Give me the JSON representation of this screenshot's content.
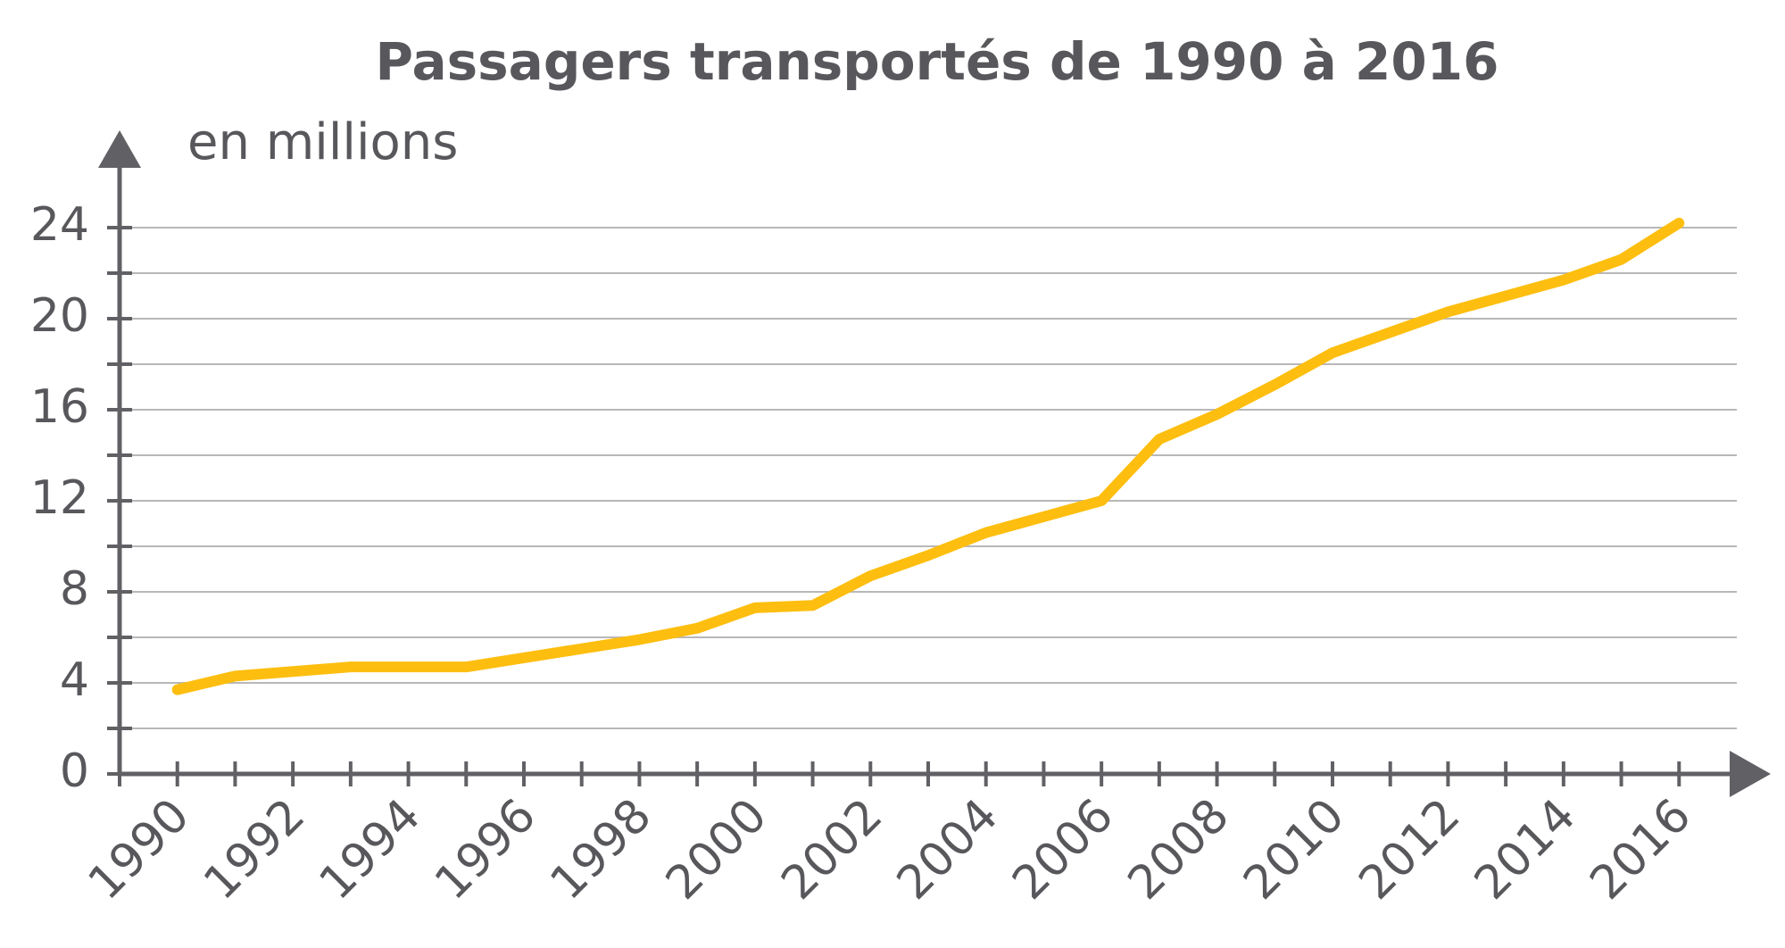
{
  "chart_data": {
    "type": "line",
    "title": "Passagers transportés de 1990 à 2016",
    "ylabel": "en millions",
    "x": [
      1990,
      1991,
      1992,
      1993,
      1994,
      1995,
      1996,
      1997,
      1998,
      1999,
      2000,
      2001,
      2002,
      2003,
      2004,
      2005,
      2006,
      2007,
      2008,
      2009,
      2010,
      2011,
      2012,
      2013,
      2014,
      2015,
      2016
    ],
    "series": [
      {
        "name": "Passagers",
        "color": "#fdbe0f",
        "values": [
          3.7,
          4.3,
          4.5,
          4.7,
          4.7,
          4.7,
          5.1,
          5.5,
          5.9,
          6.4,
          7.3,
          7.4,
          8.7,
          9.6,
          10.6,
          11.3,
          12.0,
          14.7,
          15.8,
          17.1,
          18.5,
          19.4,
          20.3,
          21.0,
          21.7,
          22.6,
          24.2
        ]
      }
    ],
    "xlim": [
      1989,
      2017
    ],
    "xticks": [
      1990,
      1992,
      1994,
      1996,
      1998,
      2000,
      2002,
      2004,
      2006,
      2008,
      2010,
      2012,
      2014,
      2016
    ],
    "xticks_minor": [
      1989,
      1991,
      1993,
      1995,
      1997,
      1999,
      2001,
      2003,
      2005,
      2007,
      2009,
      2011,
      2013,
      2015,
      2017
    ],
    "ylim": [
      0,
      28
    ],
    "yticks": [
      0,
      4,
      8,
      12,
      16,
      20,
      24
    ],
    "yticks_minor": [
      2,
      6,
      10,
      14,
      18,
      22
    ],
    "grid": true
  }
}
